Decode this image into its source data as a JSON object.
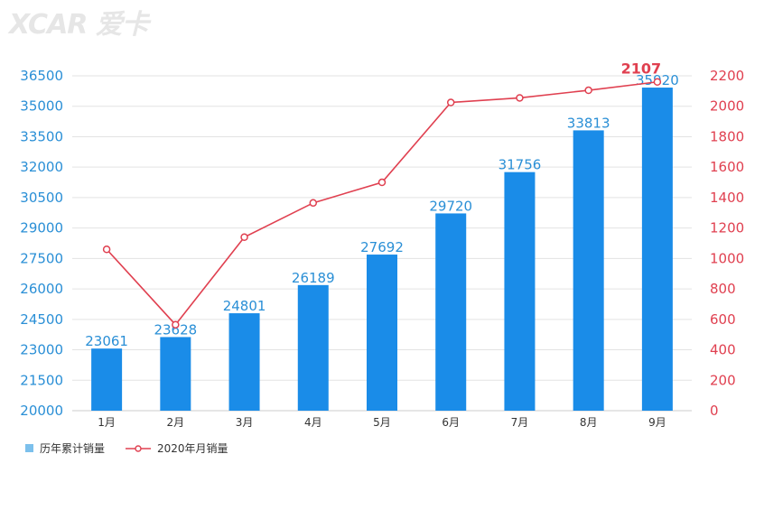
{
  "watermark": "XCAR 爱卡",
  "chart_data": {
    "type": "bar+line",
    "categories": [
      "1月",
      "2月",
      "3月",
      "4月",
      "5月",
      "6月",
      "7月",
      "8月",
      "9月"
    ],
    "series": [
      {
        "name": "历年累计销量",
        "type": "bar",
        "axis": "left",
        "values": [
          23061,
          23628,
          24801,
          26189,
          27692,
          29720,
          31756,
          33813,
          35920
        ]
      },
      {
        "name": "2020年月销量",
        "type": "line",
        "axis": "right",
        "values": [
          1060,
          565,
          1140,
          1365,
          1500,
          2025,
          2055,
          2105,
          2160
        ]
      }
    ],
    "left_axis": {
      "ylim": [
        20000,
        36500
      ],
      "ticks": [
        20000,
        21500,
        23000,
        24500,
        26000,
        27500,
        29000,
        30500,
        32000,
        33500,
        35000,
        36500
      ]
    },
    "right_axis": {
      "ylim": [
        0,
        2200
      ],
      "ticks": [
        0,
        200,
        400,
        600,
        800,
        1000,
        1200,
        1400,
        1600,
        1800,
        2000,
        2200
      ]
    },
    "annotation": "2107",
    "colors": {
      "bar": "#1a8ce8",
      "line": "#e04050",
      "left_axis": "#2a8fd6",
      "right_axis": "#e04050"
    },
    "grid": true,
    "legend_position": "bottom-left"
  }
}
